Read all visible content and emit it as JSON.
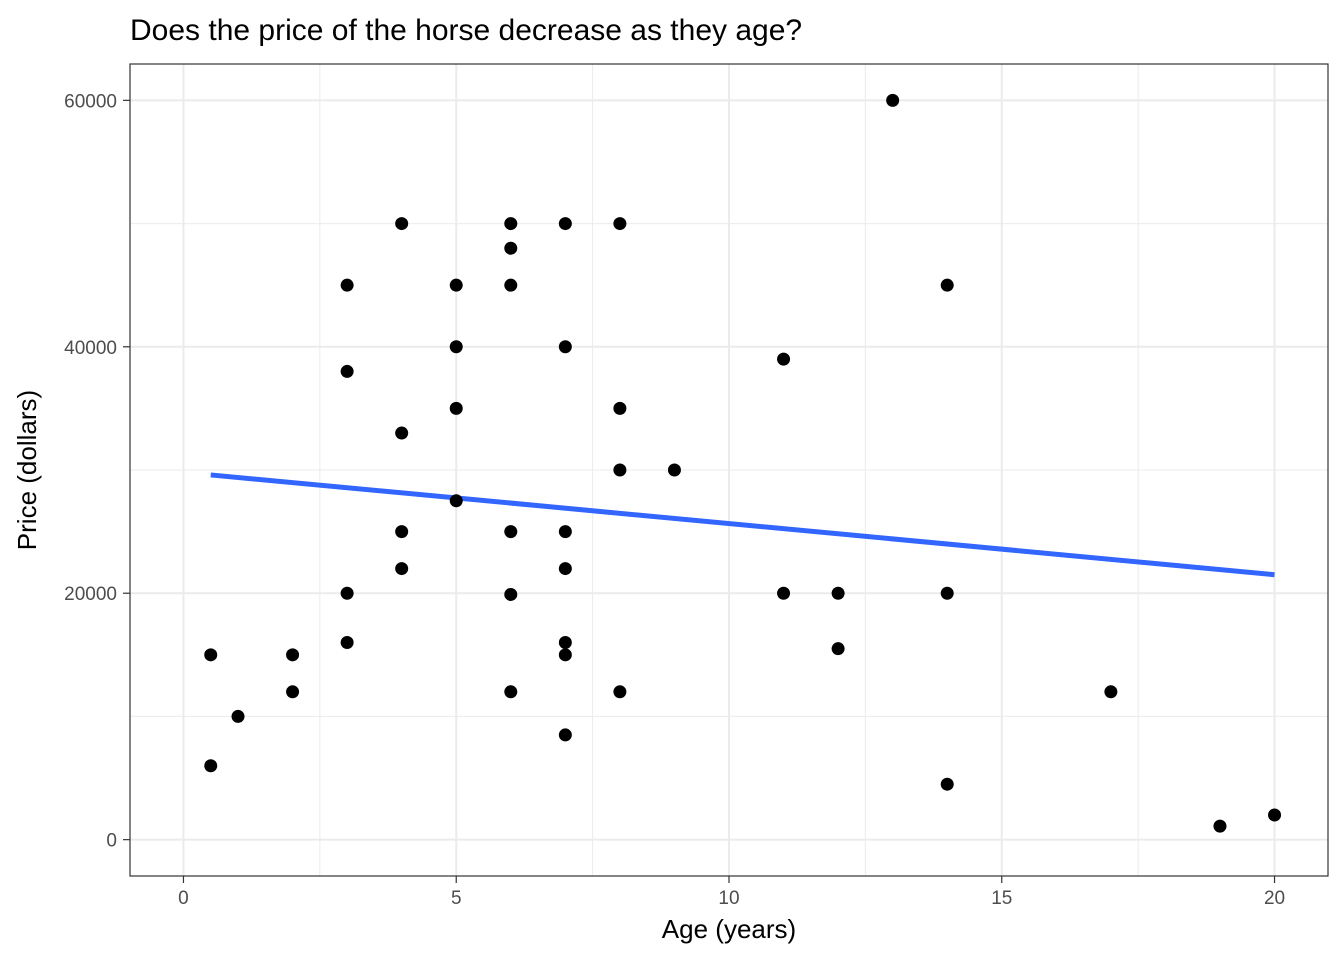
{
  "chart_data": {
    "type": "scatter",
    "title": "Does the price of the horse decrease as they age?",
    "xlabel": "Age (years)",
    "ylabel": "Price (dollars)",
    "xlim": [
      -0.98,
      20.98
    ],
    "ylim": [
      -2950,
      62950
    ],
    "x_ticks": [
      0,
      5,
      10,
      15,
      20
    ],
    "x_minor_ticks": [
      2.5,
      7.5,
      12.5,
      17.5
    ],
    "y_ticks": [
      0,
      20000,
      40000,
      60000
    ],
    "y_minor_ticks": [
      10000,
      30000,
      50000
    ],
    "grid": true,
    "legend": "none",
    "colors": {
      "points": "#000000",
      "trend": "#3366ff",
      "grid": "#ebebeb",
      "border": "#333333"
    },
    "points": [
      {
        "x": 0.5,
        "y": 15000
      },
      {
        "x": 0.5,
        "y": 6000
      },
      {
        "x": 1,
        "y": 10000
      },
      {
        "x": 2,
        "y": 15000
      },
      {
        "x": 2,
        "y": 12000
      },
      {
        "x": 3,
        "y": 45000
      },
      {
        "x": 3,
        "y": 38000
      },
      {
        "x": 3,
        "y": 20000
      },
      {
        "x": 3,
        "y": 16000
      },
      {
        "x": 4,
        "y": 50000
      },
      {
        "x": 4,
        "y": 33000
      },
      {
        "x": 4,
        "y": 25000
      },
      {
        "x": 4,
        "y": 22000
      },
      {
        "x": 5,
        "y": 45000
      },
      {
        "x": 5,
        "y": 40000
      },
      {
        "x": 5,
        "y": 35000
      },
      {
        "x": 5,
        "y": 27500
      },
      {
        "x": 6,
        "y": 50000
      },
      {
        "x": 6,
        "y": 48000
      },
      {
        "x": 6,
        "y": 45000
      },
      {
        "x": 6,
        "y": 25000
      },
      {
        "x": 6,
        "y": 19900
      },
      {
        "x": 6,
        "y": 12000
      },
      {
        "x": 7,
        "y": 50000
      },
      {
        "x": 7,
        "y": 40000
      },
      {
        "x": 7,
        "y": 25000
      },
      {
        "x": 7,
        "y": 22000
      },
      {
        "x": 7,
        "y": 16000
      },
      {
        "x": 7,
        "y": 15000
      },
      {
        "x": 7,
        "y": 8500
      },
      {
        "x": 8,
        "y": 50000
      },
      {
        "x": 8,
        "y": 35000
      },
      {
        "x": 8,
        "y": 30000
      },
      {
        "x": 8,
        "y": 12000
      },
      {
        "x": 9,
        "y": 30000
      },
      {
        "x": 11,
        "y": 39000
      },
      {
        "x": 11,
        "y": 20000
      },
      {
        "x": 12,
        "y": 20000
      },
      {
        "x": 12,
        "y": 15500
      },
      {
        "x": 13,
        "y": 60000
      },
      {
        "x": 14,
        "y": 45000
      },
      {
        "x": 14,
        "y": 20000
      },
      {
        "x": 14,
        "y": 4500
      },
      {
        "x": 17,
        "y": 12000
      },
      {
        "x": 19,
        "y": 1100
      },
      {
        "x": 20,
        "y": 2000
      }
    ],
    "trend_line": {
      "x": [
        0.5,
        20
      ],
      "y": [
        29600,
        21500
      ]
    }
  }
}
